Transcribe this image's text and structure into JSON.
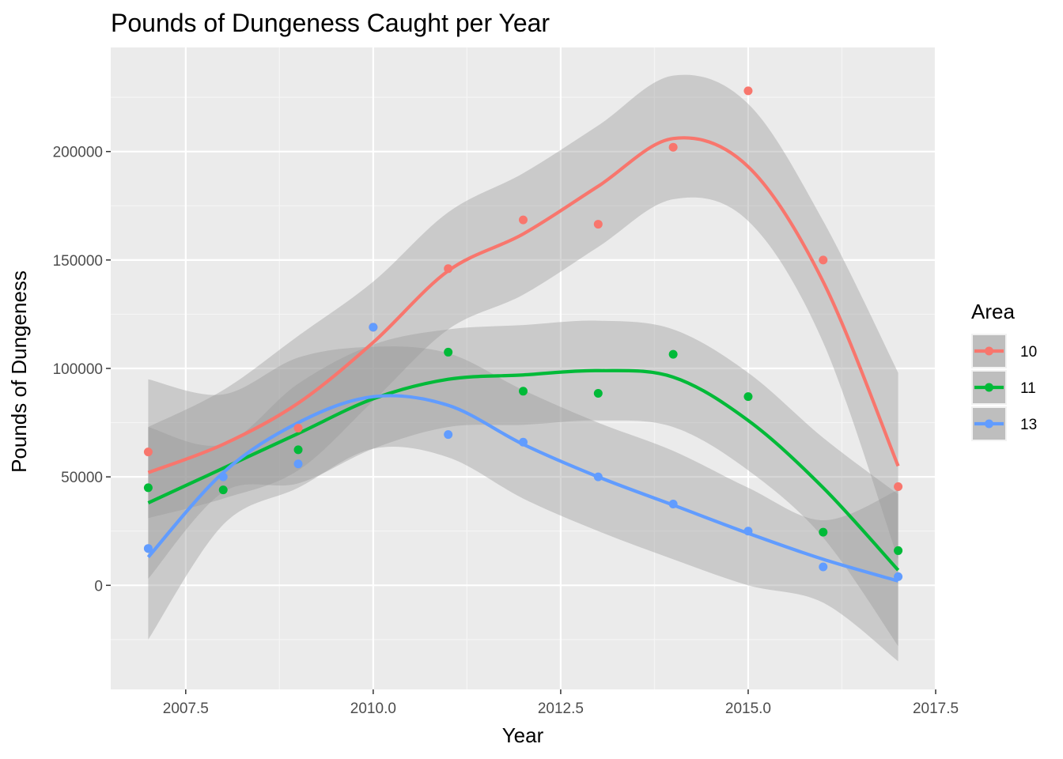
{
  "chart_data": {
    "type": "scatter",
    "title": "Pounds of Dungeness Caught per Year",
    "xlabel": "Year",
    "ylabel": "Pounds of Dungeness",
    "xlim": [
      2006.5,
      2017.5
    ],
    "ylim": [
      -48000,
      248000
    ],
    "x_ticks": [
      2007.5,
      2010.0,
      2012.5,
      2015.0,
      2017.5
    ],
    "x_tick_labels": [
      "2007.5",
      "2010.0",
      "2012.5",
      "2015.0",
      "2017.5"
    ],
    "y_ticks": [
      0,
      50000,
      100000,
      150000,
      200000
    ],
    "y_tick_labels": [
      "0",
      "50000",
      "100000",
      "150000",
      "200000"
    ],
    "grid": true,
    "legend": {
      "title": "Area",
      "position": "right"
    },
    "x": [
      2007,
      2008,
      2009,
      2010,
      2011,
      2012,
      2013,
      2014,
      2015,
      2016,
      2017
    ],
    "series": [
      {
        "name": "10",
        "color": "#F8766D",
        "point_x": [
          2007,
          2009,
          2010,
          2011,
          2012,
          2013,
          2014,
          2015,
          2016,
          2017
        ],
        "points": [
          61500,
          72500,
          119000,
          146000,
          168500,
          166500,
          202000,
          228000,
          150000,
          45500
        ],
        "smooth": [
          52000,
          65000,
          84000,
          112000,
          145000,
          162000,
          184000,
          206000,
          193000,
          140000,
          55000
        ],
        "ci_upper": [
          73000,
          90000,
          115000,
          140000,
          172000,
          190000,
          212000,
          235000,
          222000,
          168000,
          98000
        ],
        "ci_lower": [
          31000,
          40000,
          53000,
          85000,
          118000,
          134000,
          156000,
          178000,
          168000,
          112000,
          12000
        ]
      },
      {
        "name": "11",
        "color": "#00BA38",
        "point_x": [
          2007,
          2008,
          2009,
          2011,
          2012,
          2013,
          2014,
          2015,
          2016,
          2017
        ],
        "points": [
          45000,
          44000,
          62500,
          107500,
          89500,
          88500,
          106500,
          87000,
          24500,
          16000
        ],
        "smooth": [
          38000,
          54000,
          70000,
          86000,
          95000,
          97000,
          99000,
          96000,
          76000,
          45000,
          7000
        ],
        "ci_upper": [
          73000,
          65000,
          93000,
          111000,
          118000,
          120000,
          122000,
          118000,
          98000,
          68000,
          42000
        ],
        "ci_lower": [
          3000,
          43000,
          47000,
          63000,
          73000,
          74000,
          76000,
          73000,
          53000,
          22000,
          -28000
        ]
      },
      {
        "name": "13",
        "color": "#619CFF",
        "point_x": [
          2007,
          2008,
          2009,
          2010,
          2011,
          2012,
          2013,
          2014,
          2015,
          2016,
          2017
        ],
        "points": [
          17000,
          50000,
          56000,
          119000,
          69500,
          66000,
          50000,
          37500,
          25000,
          8500,
          4000
        ],
        "smooth": [
          13000,
          52000,
          75000,
          87000,
          83000,
          65000,
          50000,
          37000,
          24000,
          12000,
          2000
        ],
        "ci_upper": [
          95000,
          88000,
          105000,
          110000,
          107000,
          90000,
          75000,
          62000,
          45000,
          30000,
          44000
        ],
        "ci_lower": [
          -25000,
          28000,
          45000,
          63000,
          59000,
          40000,
          25000,
          12000,
          0,
          -8000,
          -35000
        ]
      }
    ]
  }
}
